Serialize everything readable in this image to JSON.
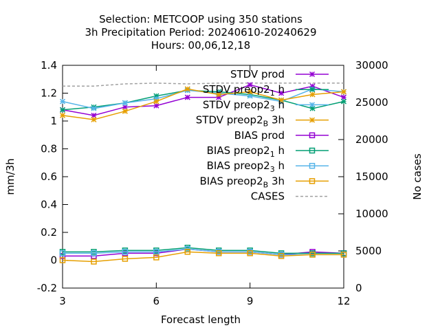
{
  "chart_data": {
    "type": "line",
    "title_lines": [
      "Selection: METCOOP using   350 stations",
      "3h Precipitation   Period: 20240610-20240629",
      "Hours:  00,06,12,18"
    ],
    "xlabel": "Forecast length",
    "ylabel": "mm/3h",
    "y2label": "No cases",
    "xlim": [
      3,
      12
    ],
    "ylim": [
      -0.2,
      1.4
    ],
    "y2lim": [
      0,
      30000
    ],
    "xticks": [
      "3",
      "6",
      "9",
      "12"
    ],
    "yticks": [
      "-0.2",
      "0",
      "0.2",
      "0.4",
      "0.6",
      "0.8",
      "1",
      "1.2",
      "1.4"
    ],
    "y2ticks": [
      "0",
      "5000",
      "10000",
      "15000",
      "20000",
      "25000",
      "30000"
    ],
    "legend_placement": "top-right",
    "x": [
      3,
      4,
      5,
      6,
      7,
      8,
      9,
      10,
      11,
      12
    ],
    "series": [
      {
        "name": "STDV prod",
        "color": "#9400d3",
        "marker": "x",
        "values": [
          1.08,
          1.04,
          1.1,
          1.11,
          1.17,
          1.17,
          1.26,
          1.2,
          1.25,
          1.17
        ]
      },
      {
        "name": "STDV preop2_1h",
        "color": "#009e73",
        "marker": "x",
        "values": [
          1.08,
          1.1,
          1.13,
          1.18,
          1.22,
          1.21,
          1.19,
          1.15,
          1.09,
          1.14
        ]
      },
      {
        "name": "STDV preop2_3h",
        "color": "#56b4e9",
        "marker": "x",
        "values": [
          1.14,
          1.09,
          1.13,
          1.16,
          1.22,
          1.2,
          1.18,
          1.14,
          1.23,
          1.21
        ]
      },
      {
        "name": "STDV preop2_B3h",
        "color": "#e69f00",
        "marker": "x",
        "values": [
          1.04,
          1.01,
          1.07,
          1.14,
          1.23,
          1.19,
          1.21,
          1.15,
          1.19,
          1.21
        ]
      },
      {
        "name": "BIAS prod",
        "color": "#9400d3",
        "marker": "square",
        "values": [
          0.03,
          0.03,
          0.05,
          0.05,
          0.08,
          0.06,
          0.06,
          0.04,
          0.06,
          0.05
        ]
      },
      {
        "name": "BIAS preop2_1h",
        "color": "#009e73",
        "marker": "square",
        "values": [
          0.06,
          0.06,
          0.07,
          0.07,
          0.09,
          0.07,
          0.07,
          0.05,
          0.05,
          0.05
        ]
      },
      {
        "name": "BIAS preop2_3h",
        "color": "#56b4e9",
        "marker": "square",
        "values": [
          0.05,
          0.05,
          0.06,
          0.06,
          0.08,
          0.06,
          0.06,
          0.04,
          0.04,
          0.04
        ]
      },
      {
        "name": "BIAS preop2_B3h",
        "color": "#e69f00",
        "marker": "square",
        "values": [
          0.0,
          -0.01,
          0.01,
          0.02,
          0.06,
          0.05,
          0.05,
          0.03,
          0.04,
          0.04
        ]
      }
    ],
    "cases": {
      "name": "CASES",
      "color": "#a0a0a0",
      "axis": "y2",
      "values": [
        27200,
        27200,
        27500,
        27600,
        27500,
        27600,
        27600,
        27600,
        27600,
        27600
      ]
    }
  }
}
